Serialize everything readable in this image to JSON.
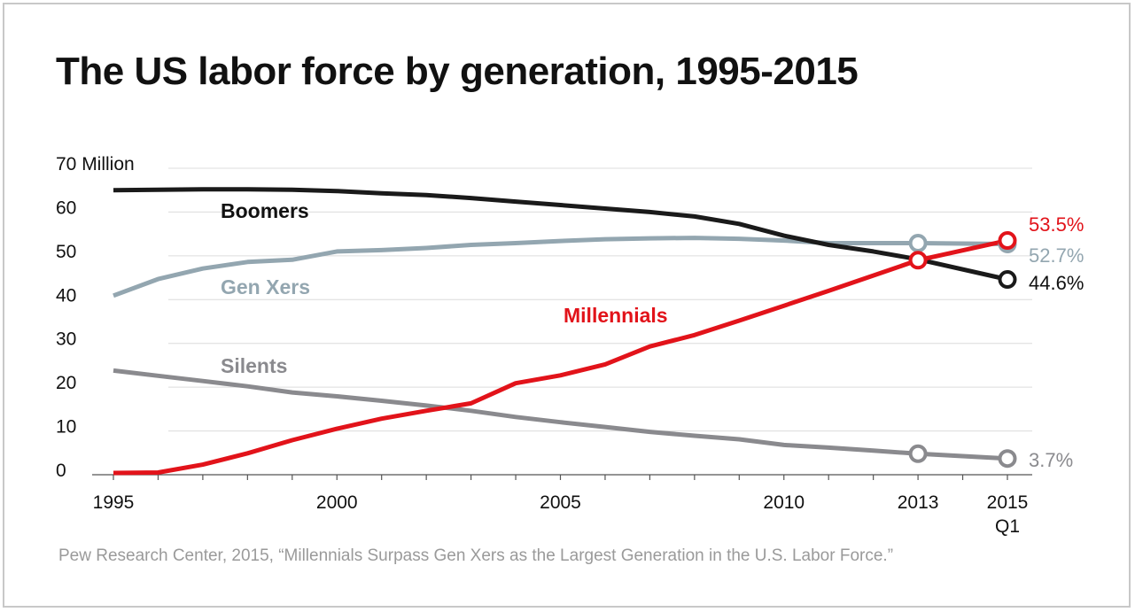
{
  "title": "The US labor force by generation, 1995-2015",
  "source": "Pew Research Center, 2015, “Millennials Surpass Gen Xers as the Largest Generation in the U.S. Labor Force.”",
  "chart_data": {
    "type": "line",
    "title": "The US labor force by generation, 1995-2015",
    "xlabel": "",
    "ylabel": "",
    "y_unit_label": "Million",
    "ylim": [
      0,
      70
    ],
    "xlim": [
      1995,
      2015
    ],
    "yticks": [
      0,
      10,
      20,
      30,
      40,
      50,
      60,
      70
    ],
    "ytick_labels": [
      "0",
      "10",
      "20",
      "30",
      "40",
      "50",
      "60",
      "70 Million"
    ],
    "xticks": [
      1995,
      2000,
      2005,
      2010,
      2013,
      2015
    ],
    "xtick_labels": [
      "1995",
      "2000",
      "2005",
      "2010",
      "2013",
      "2015"
    ],
    "xtick_sublabels": {
      "2015": "Q1"
    },
    "grid": true,
    "legend": "inline labels",
    "x": [
      1995,
      1996,
      1997,
      1998,
      1999,
      2000,
      2001,
      2002,
      2003,
      2004,
      2005,
      2006,
      2007,
      2008,
      2009,
      2010,
      2011,
      2012,
      2013,
      2015
    ],
    "series": [
      {
        "name": "Boomers",
        "color": "#1a1a1a",
        "values": [
          65.0,
          65.1,
          65.2,
          65.2,
          65.1,
          64.8,
          64.3,
          63.9,
          63.2,
          62.4,
          61.6,
          60.8,
          60.0,
          59.0,
          57.3,
          54.6,
          52.5,
          51.0,
          49.2,
          44.6
        ],
        "end_label": "44.6%",
        "markers_at": [
          2015
        ]
      },
      {
        "name": "Gen Xers",
        "color": "#93a6b0",
        "values": [
          40.9,
          44.7,
          47.1,
          48.6,
          49.1,
          51.0,
          51.3,
          51.8,
          52.5,
          52.9,
          53.4,
          53.8,
          54.0,
          54.1,
          53.9,
          53.5,
          52.9,
          52.9,
          52.9,
          52.7
        ],
        "end_label": "52.7%",
        "markers_at": [
          2013,
          2015
        ]
      },
      {
        "name": "Millennials",
        "color": "#e2131a",
        "values": [
          0.4,
          0.5,
          2.3,
          4.9,
          7.9,
          10.5,
          12.8,
          14.6,
          16.3,
          20.9,
          22.7,
          25.2,
          29.3,
          31.9,
          35.2,
          38.6,
          42.0,
          45.5,
          49.0,
          53.5
        ],
        "end_label": "53.5%",
        "markers_at": [
          2013,
          2015
        ]
      },
      {
        "name": "Silents",
        "color": "#8a8a8e",
        "values": [
          23.8,
          22.6,
          21.4,
          20.2,
          18.8,
          17.9,
          16.9,
          15.8,
          14.6,
          13.2,
          12.0,
          10.9,
          9.8,
          8.9,
          8.1,
          6.8,
          6.2,
          5.5,
          4.8,
          3.7
        ],
        "end_label": "3.7%",
        "markers_at": [
          2013,
          2015
        ]
      }
    ]
  }
}
